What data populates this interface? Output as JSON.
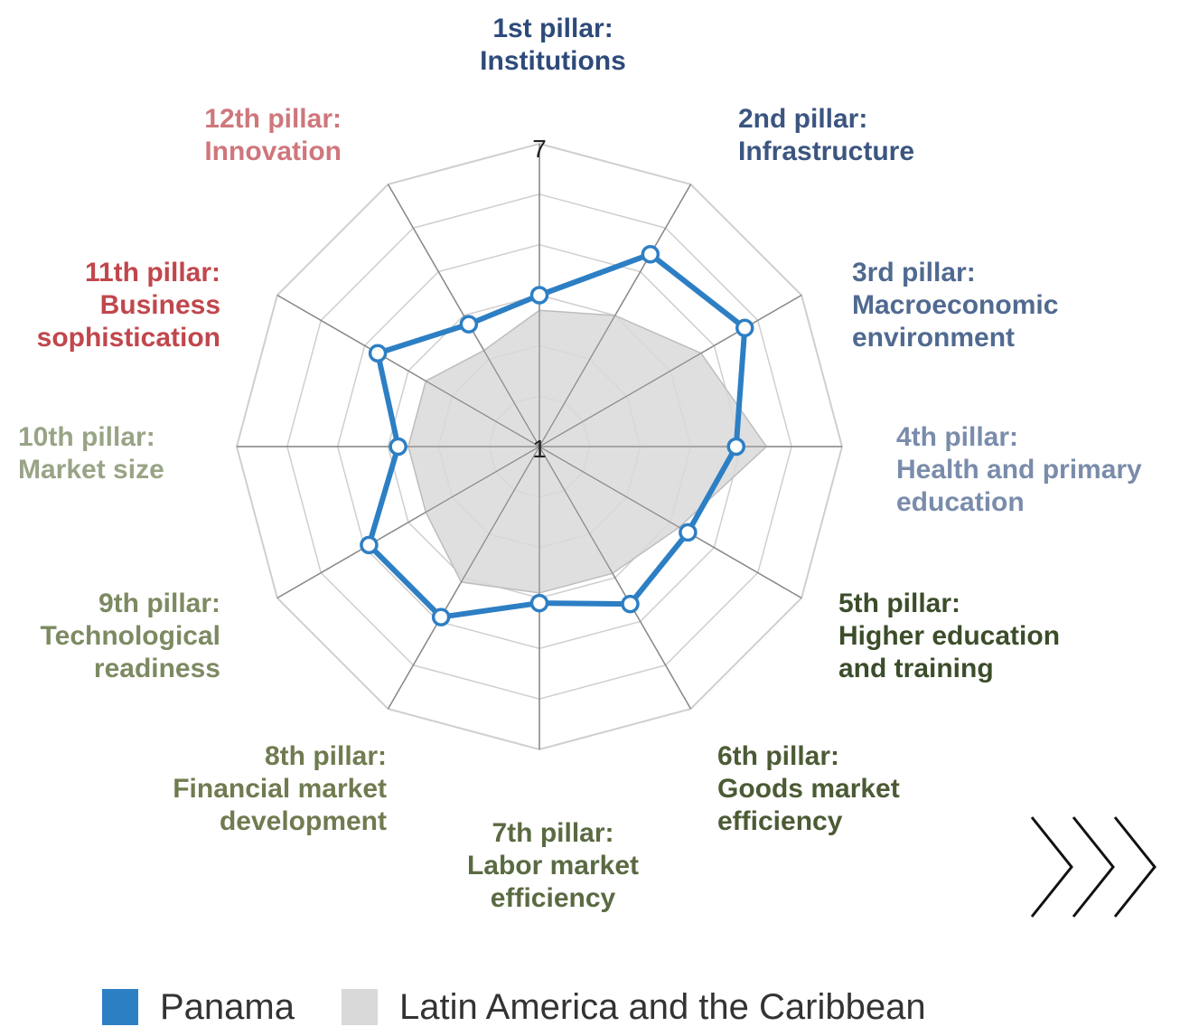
{
  "chart_data": {
    "type": "radar",
    "scale": {
      "min": 1,
      "max": 7,
      "center_label": "1",
      "max_label": "7"
    },
    "axes": [
      {
        "line1": "1st pillar:",
        "line2": "Institutions",
        "line3": "",
        "color": "#2e4a7a"
      },
      {
        "line1": "2nd pillar:",
        "line2": "Infrastructure",
        "line3": "",
        "color": "#3c5580"
      },
      {
        "line1": "3rd pillar:",
        "line2": "Macroeconomic",
        "line3": "environment",
        "color": "#506a90"
      },
      {
        "line1": "4th pillar:",
        "line2": "Health and primary",
        "line3": "education",
        "color": "#7a8cab"
      },
      {
        "line1": "5th pillar:",
        "line2": "Higher education",
        "line3": "and training",
        "color": "#3b4d2a"
      },
      {
        "line1": "6th pillar:",
        "line2": "Goods market",
        "line3": "efficiency",
        "color": "#4b5b35"
      },
      {
        "line1": "7th pillar:",
        "line2": "Labor market",
        "line3": "efficiency",
        "color": "#5a6a42"
      },
      {
        "line1": "8th pillar:",
        "line2": "Financial market",
        "line3": "development",
        "color": "#6f7b50"
      },
      {
        "line1": "9th pillar:",
        "line2": "Technological",
        "line3": "readiness",
        "color": "#7c8a62"
      },
      {
        "line1": "10th pillar:",
        "line2": "Market size",
        "line3": "",
        "color": "#98a486"
      },
      {
        "line1": "11th pillar:",
        "line2": "Business",
        "line3": "sophistication",
        "color": "#c0474d"
      },
      {
        "line1": "12th pillar:",
        "line2": "Innovation",
        "line3": "",
        "color": "#cf777c"
      }
    ],
    "series": [
      {
        "name": "Panama",
        "color": "#2d7fc4",
        "values": [
          4.0,
          5.4,
          5.7,
          4.9,
          4.4,
          4.6,
          4.1,
          4.9,
          4.9,
          3.8,
          4.7,
          3.8
        ]
      },
      {
        "name": "Latin America and the Caribbean",
        "color": "#d9d9d9",
        "values": [
          3.7,
          4.0,
          4.7,
          5.5,
          4.2,
          3.9,
          3.9,
          4.1,
          3.6,
          3.6,
          3.6,
          3.2
        ]
      }
    ],
    "legend_position": "bottom"
  }
}
